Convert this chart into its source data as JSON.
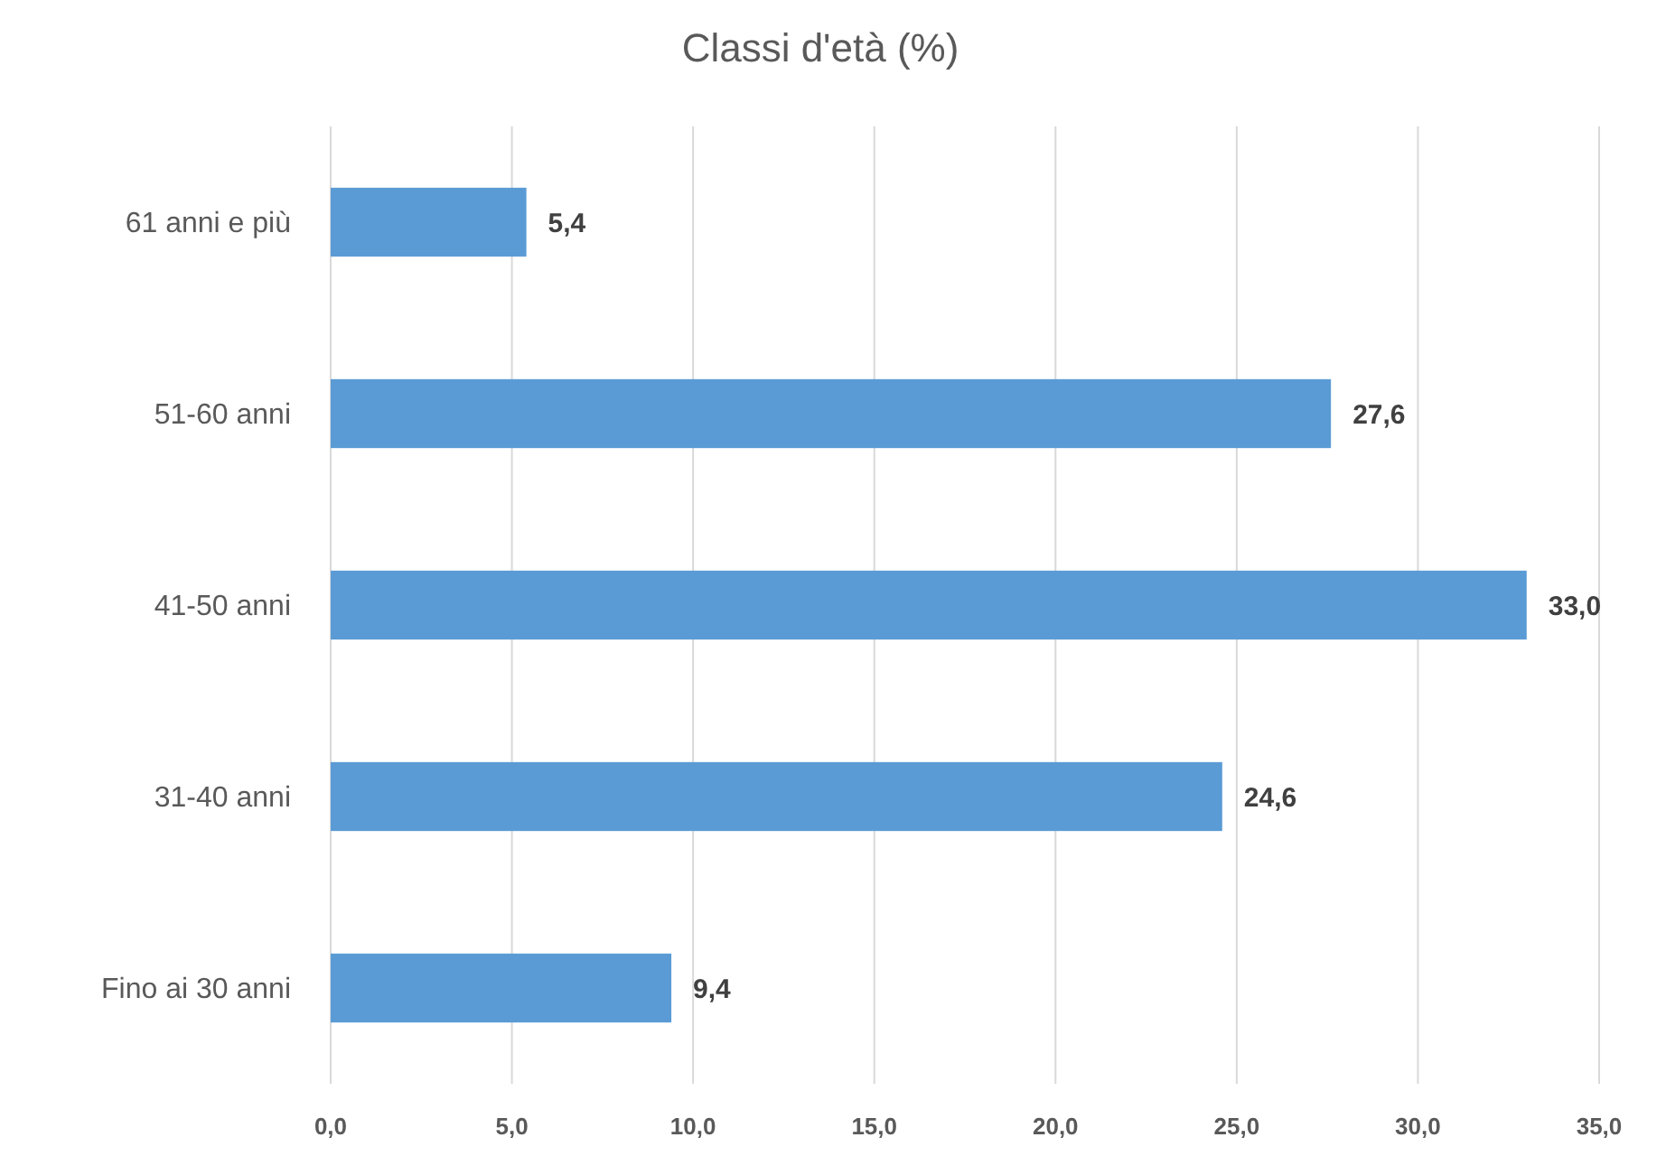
{
  "chart_data": {
    "type": "bar",
    "orientation": "horizontal",
    "title": "Classi d'età (%)",
    "categories": [
      "61 anni e più",
      "51-60 anni",
      "41-50 anni",
      "31-40 anni",
      "Fino ai 30 anni"
    ],
    "values": [
      5.4,
      27.6,
      33.0,
      24.6,
      9.4
    ],
    "value_labels": [
      "5,4",
      "27,6",
      "33,0",
      "24,6",
      "9,4"
    ],
    "color": "#5b9bd5",
    "xlim": [
      0,
      35
    ],
    "xticks": [
      {
        "value": 0,
        "label": "0,0"
      },
      {
        "value": 5,
        "label": "5,0"
      },
      {
        "value": 10,
        "label": "10,0"
      },
      {
        "value": 15,
        "label": "15,0"
      },
      {
        "value": 20,
        "label": "20,0"
      },
      {
        "value": 25,
        "label": "25,0"
      },
      {
        "value": 30,
        "label": "30,0"
      },
      {
        "value": 35,
        "label": "35,0"
      }
    ],
    "grid": "x"
  }
}
